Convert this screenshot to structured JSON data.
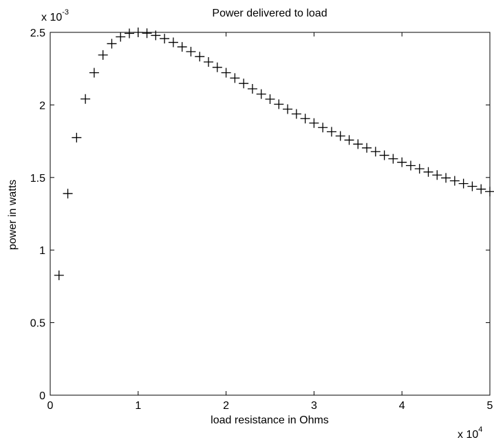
{
  "chart_data": {
    "type": "scatter",
    "title": "Power delivered to load",
    "xlabel": "load resistance in Ohms",
    "ylabel": "power in watts",
    "x_multiplier_label": "x 10",
    "x_multiplier_exp": "4",
    "y_multiplier_label": "x 10",
    "y_multiplier_exp": "-3",
    "xlim": [
      0,
      50000
    ],
    "ylim": [
      0,
      0.0025
    ],
    "x_ticks": [
      0,
      10000,
      20000,
      30000,
      40000,
      50000
    ],
    "x_tick_labels": [
      "0",
      "1",
      "2",
      "3",
      "4",
      "5"
    ],
    "y_ticks": [
      0,
      0.0005,
      0.001,
      0.0015,
      0.002,
      0.0025
    ],
    "y_tick_labels": [
      "0",
      "0.5",
      "1",
      "1.5",
      "2",
      "2.5"
    ],
    "marker": "+",
    "color": "#000000",
    "grid": false,
    "series": [
      {
        "x": [
          1000,
          2000,
          3000,
          4000,
          5000,
          6000,
          7000,
          8000,
          9000,
          10000,
          11000,
          12000,
          13000,
          14000,
          15000,
          16000,
          17000,
          18000,
          19000,
          20000,
          21000,
          22000,
          23000,
          24000,
          25000,
          26000,
          27000,
          28000,
          29000,
          30000,
          31000,
          32000,
          33000,
          34000,
          35000,
          36000,
          37000,
          38000,
          39000,
          40000,
          41000,
          42000,
          43000,
          44000,
          45000,
          46000,
          47000,
          48000,
          49000,
          50000
        ],
        "y": [
          0.000826,
          0.001389,
          0.001775,
          0.002041,
          0.002222,
          0.002344,
          0.002422,
          0.002469,
          0.002493,
          0.0025,
          0.002494,
          0.002479,
          0.002457,
          0.002431,
          0.0024,
          0.002367,
          0.002333,
          0.002296,
          0.002259,
          0.002222,
          0.002185,
          0.002148,
          0.002111,
          0.002075,
          0.00204,
          0.002005,
          0.001971,
          0.001938,
          0.001906,
          0.001875,
          0.001844,
          0.001815,
          0.001786,
          0.001758,
          0.00173,
          0.001704,
          0.001678,
          0.001653,
          0.001629,
          0.001605,
          0.001582,
          0.00156,
          0.001538,
          0.001517,
          0.001497,
          0.001477,
          0.001458,
          0.001439,
          0.00142,
          0.001403
        ]
      }
    ]
  }
}
